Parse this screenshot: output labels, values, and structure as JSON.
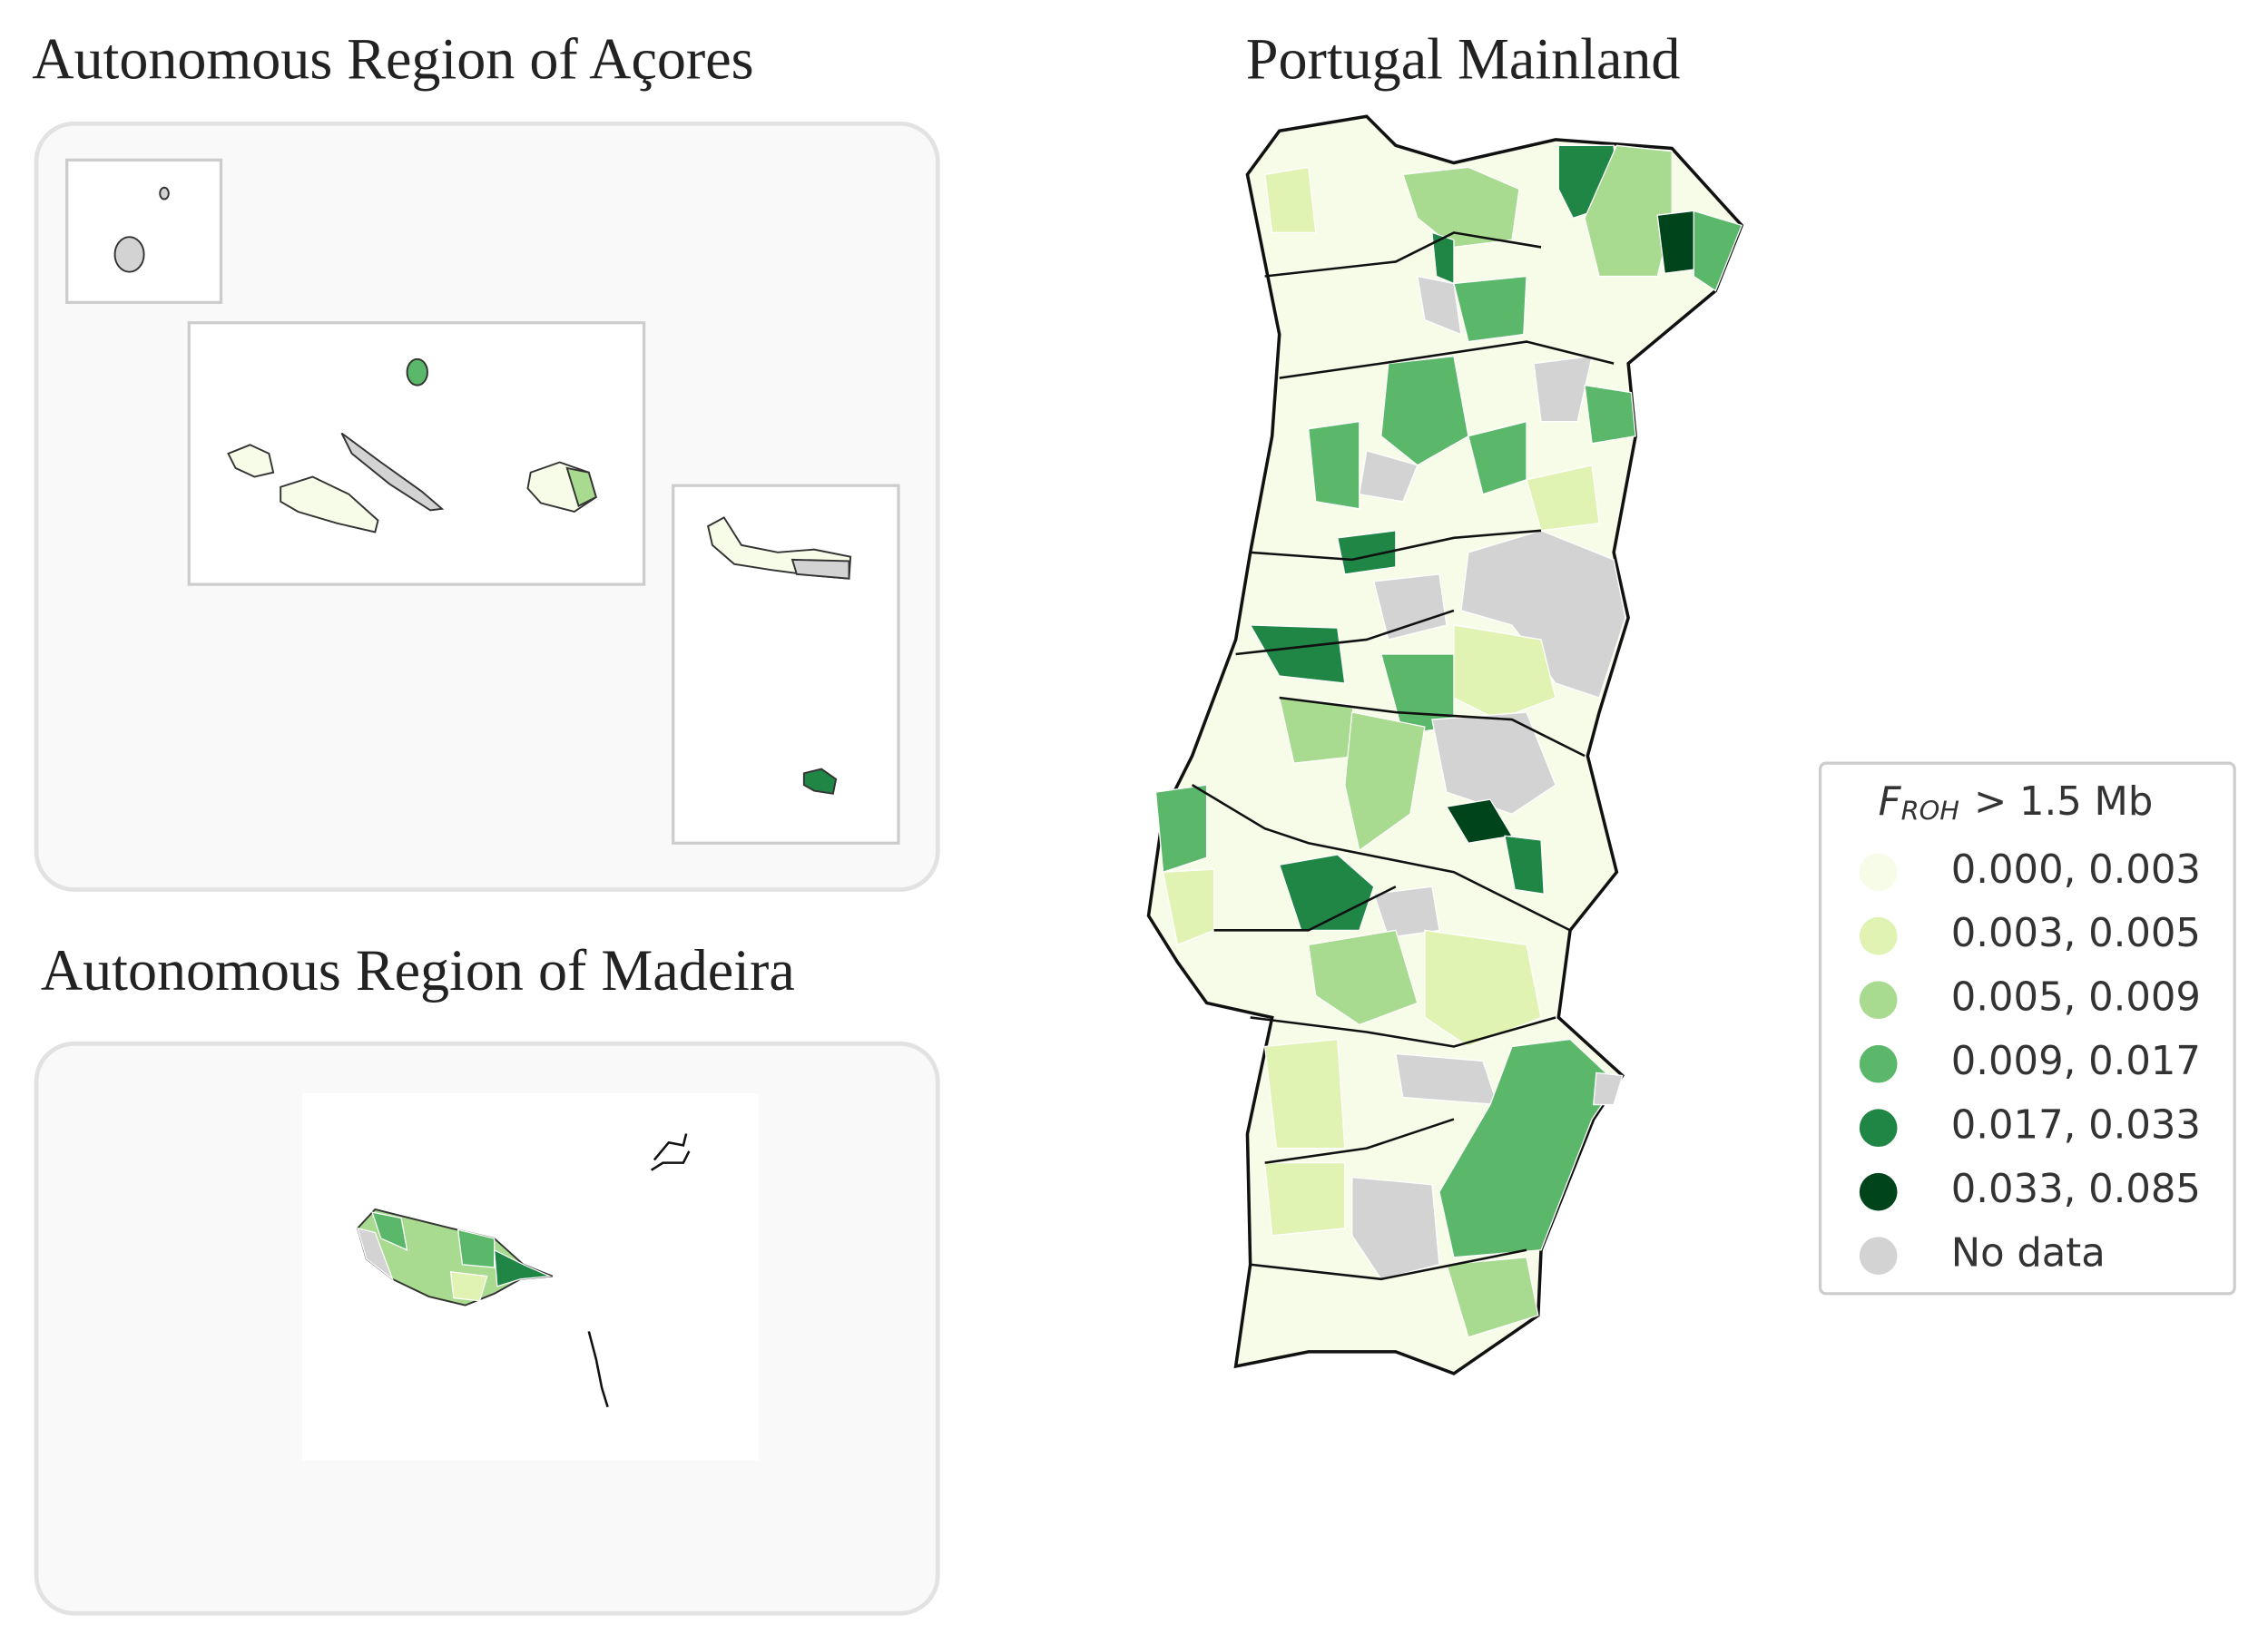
{
  "panels": {
    "acores": {
      "title": "Autonomous Region of Açores"
    },
    "madeira": {
      "title": "Autonomous Region of Madeira"
    },
    "mainland": {
      "title": "Portugal Mainland"
    }
  },
  "legend": {
    "title": {
      "symbol": "F",
      "subscript": "ROH",
      "text": "> 1.5 Mb"
    },
    "items": [
      {
        "label": "0.000, 0.003",
        "color": "#f7fce9"
      },
      {
        "label": "0.003, 0.005",
        "color": "#e0f3b2"
      },
      {
        "label": "0.005, 0.009",
        "color": "#a8db8f"
      },
      {
        "label": "0.009, 0.017",
        "color": "#5bb86a"
      },
      {
        "label": "0.017, 0.033",
        "color": "#1f8646"
      },
      {
        "label": "0.033, 0.085",
        "color": "#00441b"
      },
      {
        "label": "No data",
        "color": "#d3d3d3"
      }
    ]
  }
}
